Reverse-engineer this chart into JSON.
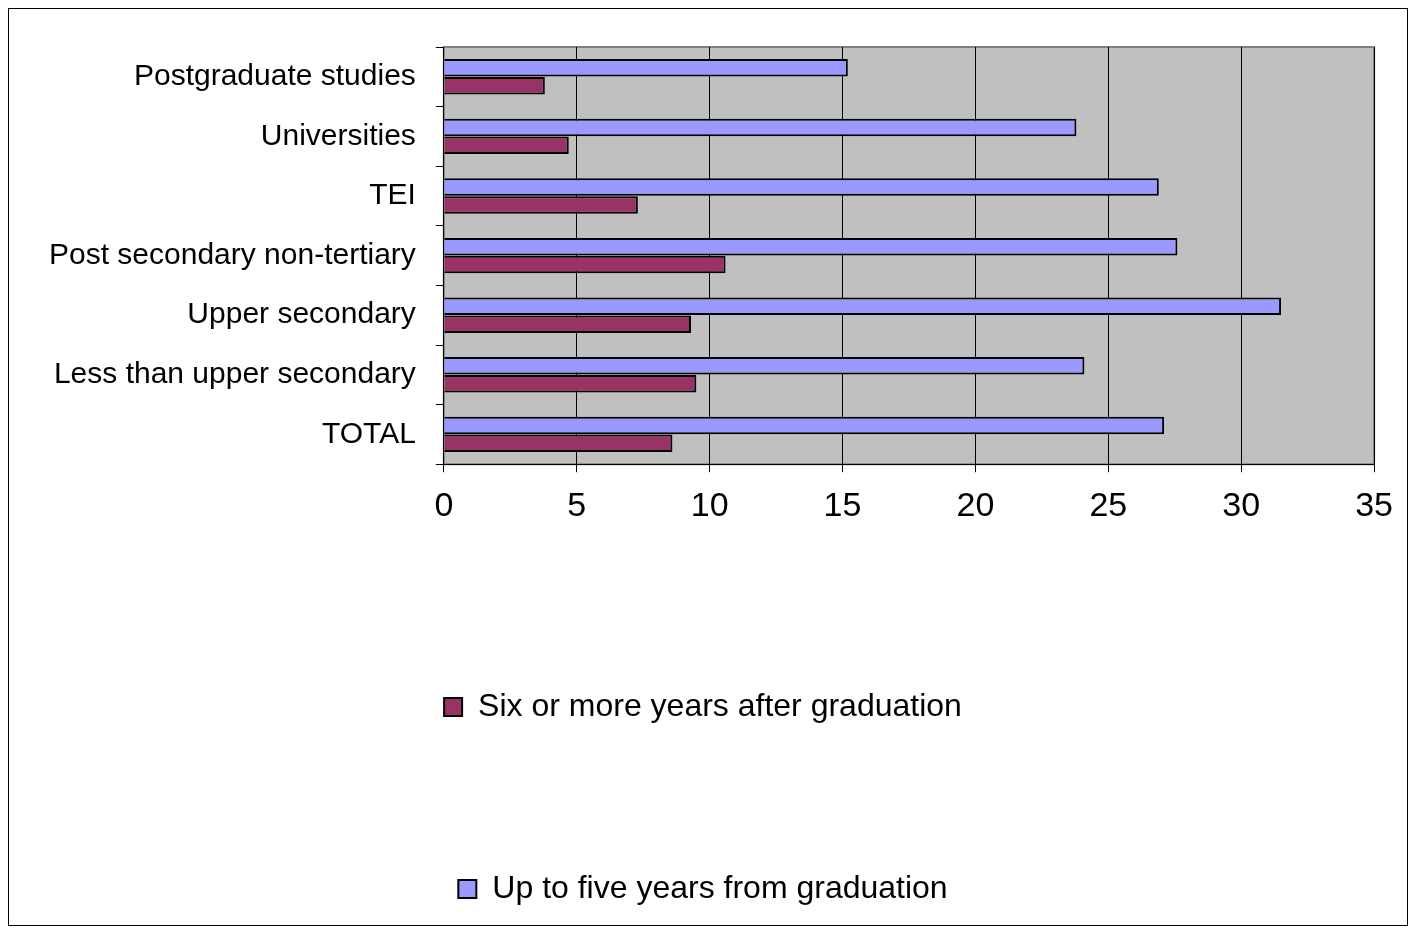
{
  "chart_data": {
    "type": "bar",
    "orientation": "horizontal",
    "categories": [
      "Postgraduate studies",
      "Universities",
      "TEI",
      "Post secondary non-tertiary",
      "Upper secondary",
      "Less than upper secondary",
      "TOTAL"
    ],
    "series": [
      {
        "name": "Up to five years from graduation",
        "color": "#9999ff",
        "values": [
          15.2,
          23.8,
          26.9,
          27.6,
          31.5,
          24.1,
          27.1
        ]
      },
      {
        "name": "Six or more years after graduation",
        "color": "#993366",
        "values": [
          3.8,
          4.7,
          7.3,
          10.6,
          9.3,
          9.5,
          8.6
        ]
      }
    ],
    "xlim": [
      0,
      35
    ],
    "xticks": [
      0,
      5,
      10,
      15,
      20,
      25,
      30,
      35
    ],
    "grid": "x",
    "legend": "bottom"
  }
}
